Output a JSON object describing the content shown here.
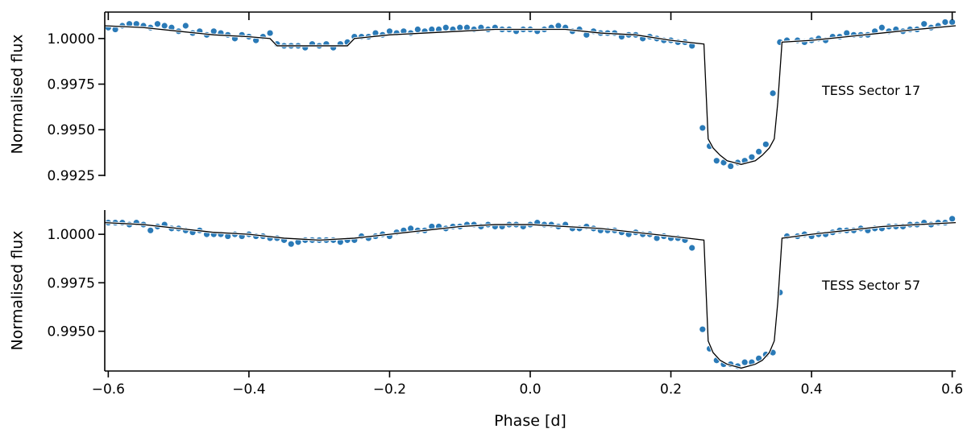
{
  "chart_data": [
    {
      "type": "scatter",
      "panel": "top",
      "annotation": "TESS Sector 17",
      "ylabel": "Normalised flux",
      "xlabel": "",
      "xlim": [
        -0.605,
        0.605
      ],
      "ylim": [
        0.99245,
        1.00145
      ],
      "yticks": [
        0.9925,
        0.995,
        0.9975,
        1.0
      ],
      "ytick_labels": [
        "0.9925",
        "0.9950",
        "0.9975",
        "1.0000"
      ],
      "xticks": [
        -0.6,
        -0.4,
        -0.2,
        0.0,
        0.2,
        0.4,
        0.6
      ],
      "grid": false,
      "colors": {
        "points": "#2a7ab7",
        "model": "#000000"
      },
      "series": [
        {
          "kind": "points",
          "x": [
            -0.6,
            -0.59,
            -0.58,
            -0.57,
            -0.56,
            -0.55,
            -0.54,
            -0.53,
            -0.52,
            -0.51,
            -0.5,
            -0.49,
            -0.48,
            -0.47,
            -0.46,
            -0.45,
            -0.44,
            -0.43,
            -0.42,
            -0.41,
            -0.4,
            -0.39,
            -0.38,
            -0.37,
            -0.36,
            -0.35,
            -0.34,
            -0.33,
            -0.32,
            -0.31,
            -0.3,
            -0.29,
            -0.28,
            -0.27,
            -0.26,
            -0.25,
            -0.24,
            -0.23,
            -0.22,
            -0.21,
            -0.2,
            -0.19,
            -0.18,
            -0.17,
            -0.16,
            -0.15,
            -0.14,
            -0.13,
            -0.12,
            -0.11,
            -0.1,
            -0.09,
            -0.08,
            -0.07,
            -0.06,
            -0.05,
            -0.04,
            -0.03,
            -0.02,
            -0.01,
            0.0,
            0.01,
            0.02,
            0.03,
            0.04,
            0.05,
            0.06,
            0.07,
            0.08,
            0.09,
            0.1,
            0.11,
            0.12,
            0.13,
            0.14,
            0.15,
            0.16,
            0.17,
            0.18,
            0.19,
            0.2,
            0.21,
            0.22,
            0.23,
            0.245,
            0.255,
            0.265,
            0.275,
            0.285,
            0.295,
            0.305,
            0.315,
            0.325,
            0.335,
            0.345,
            0.355,
            0.365,
            0.38,
            0.39,
            0.4,
            0.41,
            0.42,
            0.43,
            0.44,
            0.45,
            0.46,
            0.47,
            0.48,
            0.49,
            0.5,
            0.51,
            0.52,
            0.53,
            0.54,
            0.55,
            0.56,
            0.57,
            0.58,
            0.59,
            0.6
          ],
          "y": [
            1.0006,
            1.0005,
            1.0007,
            1.0008,
            1.0008,
            1.0007,
            1.0006,
            1.0008,
            1.0007,
            1.0006,
            1.0004,
            1.0007,
            1.0003,
            1.0004,
            1.0002,
            1.0004,
            1.0003,
            1.0002,
            1.0,
            1.0002,
            1.0001,
            0.9999,
            1.0001,
            1.0003,
            0.9997,
            0.9996,
            0.9996,
            0.9996,
            0.9995,
            0.9997,
            0.9996,
            0.9997,
            0.9995,
            0.9997,
            0.9998,
            1.0001,
            1.0001,
            1.0001,
            1.0003,
            1.0002,
            1.0004,
            1.0003,
            1.0004,
            1.0003,
            1.0005,
            1.0004,
            1.0005,
            1.0005,
            1.0006,
            1.0005,
            1.0006,
            1.0006,
            1.0005,
            1.0006,
            1.0005,
            1.0006,
            1.0005,
            1.0005,
            1.0004,
            1.0005,
            1.0005,
            1.0004,
            1.0005,
            1.0006,
            1.0007,
            1.0006,
            1.0004,
            1.0005,
            1.0002,
            1.0004,
            1.0003,
            1.0003,
            1.0003,
            1.0001,
            1.0002,
            1.0002,
            1.0,
            1.0001,
            1.0,
            0.9999,
            0.9999,
            0.9998,
            0.9998,
            0.9996,
            0.9951,
            0.9941,
            0.9933,
            0.9932,
            0.993,
            0.9932,
            0.9933,
            0.9935,
            0.9938,
            0.9942,
            0.997,
            0.9998,
            0.9999,
            0.9999,
            0.9998,
            0.9999,
            1.0,
            0.9999,
            1.0001,
            1.0001,
            1.0003,
            1.0002,
            1.0002,
            1.0002,
            1.0004,
            1.0006,
            1.0004,
            1.0005,
            1.0004,
            1.0005,
            1.0005,
            1.0008,
            1.0006,
            1.0007,
            1.0009,
            1.0009
          ]
        },
        {
          "kind": "model",
          "x": [
            -0.605,
            -0.55,
            -0.5,
            -0.45,
            -0.4,
            -0.37,
            -0.36,
            -0.35,
            -0.3,
            -0.26,
            -0.25,
            -0.2,
            -0.15,
            -0.1,
            -0.05,
            0.0,
            0.05,
            0.1,
            0.15,
            0.2,
            0.247,
            0.253,
            0.26,
            0.27,
            0.28,
            0.29,
            0.3,
            0.31,
            0.32,
            0.33,
            0.34,
            0.347,
            0.352,
            0.358,
            0.4,
            0.45,
            0.5,
            0.55,
            0.605
          ],
          "y": [
            1.0007,
            1.0006,
            1.0004,
            1.0002,
            1.0001,
            1.0,
            0.9996,
            0.9996,
            0.9996,
            0.9996,
            1.0,
            1.0002,
            1.0003,
            1.0004,
            1.0005,
            1.0005,
            1.0005,
            1.0003,
            1.0002,
            0.9999,
            0.9997,
            0.9945,
            0.994,
            0.9936,
            0.9933,
            0.9932,
            0.9931,
            0.9932,
            0.9933,
            0.9936,
            0.994,
            0.9945,
            0.9965,
            0.9998,
            0.9999,
            1.0001,
            1.0003,
            1.0005,
            1.0007
          ]
        }
      ]
    },
    {
      "type": "scatter",
      "panel": "bottom",
      "annotation": "TESS Sector 57",
      "ylabel": "Normalised flux",
      "xlabel": "Phase [d]",
      "xlim": [
        -0.605,
        0.605
      ],
      "ylim": [
        0.99295,
        1.00125
      ],
      "yticks": [
        0.995,
        0.9975,
        1.0
      ],
      "ytick_labels": [
        "0.9950",
        "0.9975",
        "1.0000"
      ],
      "xticks": [
        -0.6,
        -0.4,
        -0.2,
        0.0,
        0.2,
        0.4,
        0.6
      ],
      "xtick_labels": [
        "−0.6",
        "−0.4",
        "−0.2",
        "0.0",
        "0.2",
        "0.4",
        "0.6"
      ],
      "grid": false,
      "colors": {
        "points": "#2a7ab7",
        "model": "#000000"
      },
      "series": [
        {
          "kind": "points",
          "x": [
            -0.6,
            -0.59,
            -0.58,
            -0.57,
            -0.56,
            -0.55,
            -0.54,
            -0.53,
            -0.52,
            -0.51,
            -0.5,
            -0.49,
            -0.48,
            -0.47,
            -0.46,
            -0.45,
            -0.44,
            -0.43,
            -0.42,
            -0.41,
            -0.4,
            -0.39,
            -0.38,
            -0.37,
            -0.36,
            -0.35,
            -0.34,
            -0.33,
            -0.32,
            -0.31,
            -0.3,
            -0.29,
            -0.28,
            -0.27,
            -0.26,
            -0.25,
            -0.24,
            -0.23,
            -0.22,
            -0.21,
            -0.2,
            -0.19,
            -0.18,
            -0.17,
            -0.16,
            -0.15,
            -0.14,
            -0.13,
            -0.12,
            -0.11,
            -0.1,
            -0.09,
            -0.08,
            -0.07,
            -0.06,
            -0.05,
            -0.04,
            -0.03,
            -0.02,
            -0.01,
            0.0,
            0.01,
            0.02,
            0.03,
            0.04,
            0.05,
            0.06,
            0.07,
            0.08,
            0.09,
            0.1,
            0.11,
            0.12,
            0.13,
            0.14,
            0.15,
            0.16,
            0.17,
            0.18,
            0.19,
            0.2,
            0.21,
            0.22,
            0.23,
            0.245,
            0.255,
            0.265,
            0.275,
            0.285,
            0.295,
            0.305,
            0.315,
            0.325,
            0.335,
            0.345,
            0.355,
            0.365,
            0.38,
            0.39,
            0.4,
            0.41,
            0.42,
            0.43,
            0.44,
            0.45,
            0.46,
            0.47,
            0.48,
            0.49,
            0.5,
            0.51,
            0.52,
            0.53,
            0.54,
            0.55,
            0.56,
            0.57,
            0.58,
            0.59,
            0.6
          ],
          "y": [
            1.0006,
            1.0006,
            1.0006,
            1.0005,
            1.0006,
            1.0005,
            1.0002,
            1.0004,
            1.0005,
            1.0003,
            1.0003,
            1.0002,
            1.0001,
            1.0002,
            1.0,
            1.0,
            1.0,
            0.9999,
            1.0,
            0.9999,
            1.0,
            0.9999,
            0.9999,
            0.9998,
            0.9998,
            0.9997,
            0.9995,
            0.9996,
            0.9997,
            0.9997,
            0.9997,
            0.9997,
            0.9997,
            0.9996,
            0.9997,
            0.9997,
            0.9999,
            0.9998,
            0.9999,
            1.0,
            0.9999,
            1.0001,
            1.0002,
            1.0003,
            1.0002,
            1.0002,
            1.0004,
            1.0004,
            1.0003,
            1.0004,
            1.0004,
            1.0005,
            1.0005,
            1.0004,
            1.0005,
            1.0004,
            1.0004,
            1.0005,
            1.0005,
            1.0004,
            1.0005,
            1.0006,
            1.0005,
            1.0005,
            1.0004,
            1.0005,
            1.0003,
            1.0003,
            1.0004,
            1.0003,
            1.0002,
            1.0002,
            1.0002,
            1.0001,
            1.0,
            1.0001,
            1.0,
            1.0,
            0.9998,
            0.9999,
            0.9998,
            0.9998,
            0.9997,
            0.9993,
            0.9951,
            0.9941,
            0.9935,
            0.9933,
            0.9933,
            0.9932,
            0.9934,
            0.9934,
            0.9936,
            0.9938,
            0.9939,
            0.997,
            0.9999,
            0.9999,
            1.0,
            0.9999,
            1.0,
            1.0,
            1.0001,
            1.0002,
            1.0002,
            1.0002,
            1.0003,
            1.0002,
            1.0003,
            1.0003,
            1.0004,
            1.0004,
            1.0004,
            1.0005,
            1.0005,
            1.0006,
            1.0005,
            1.0006,
            1.0006,
            1.0008
          ]
        },
        {
          "kind": "model",
          "x": [
            -0.605,
            -0.55,
            -0.5,
            -0.45,
            -0.4,
            -0.35,
            -0.3,
            -0.25,
            -0.2,
            -0.15,
            -0.1,
            -0.05,
            0.0,
            0.05,
            0.1,
            0.15,
            0.2,
            0.247,
            0.253,
            0.26,
            0.27,
            0.28,
            0.29,
            0.3,
            0.31,
            0.32,
            0.33,
            0.34,
            0.347,
            0.352,
            0.358,
            0.4,
            0.45,
            0.5,
            0.55,
            0.605
          ],
          "y": [
            1.0006,
            1.0005,
            1.0003,
            1.0001,
            1.0,
            0.9998,
            0.9997,
            0.9998,
            1.0,
            1.0002,
            1.0004,
            1.0005,
            1.0005,
            1.0004,
            1.0003,
            1.0001,
            0.9999,
            0.9997,
            0.9945,
            0.9939,
            0.9935,
            0.9933,
            0.9932,
            0.9931,
            0.9932,
            0.9933,
            0.9935,
            0.9939,
            0.9945,
            0.9965,
            0.9998,
            1.0,
            1.0002,
            1.0004,
            1.0005,
            1.0006
          ]
        }
      ]
    }
  ]
}
